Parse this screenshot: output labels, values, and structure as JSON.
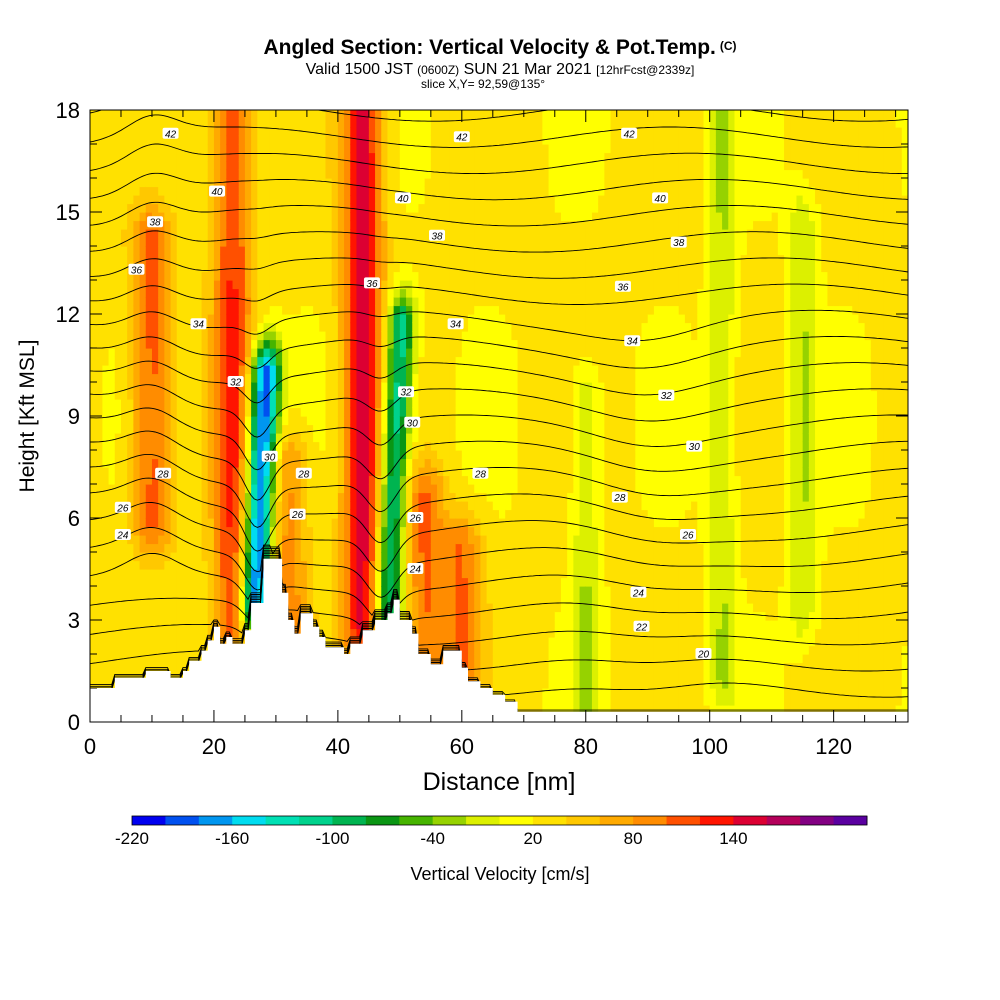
{
  "header": {
    "title": "Angled Section: Vertical Velocity & Pot.Temp.",
    "title_mark": "(C)",
    "valid_prefix": "Valid 1500 JST",
    "valid_utc": "(0600Z)",
    "valid_date": "SUN 21 Mar 2021",
    "forecast": "[12hrFcst@2339z]",
    "slice": "slice X,Y= 92,59@135°"
  },
  "chart_data": {
    "type": "heatmap",
    "xlabel": "Distance [nm]",
    "ylabel": "Height [Kft MSL]",
    "xlim": [
      0,
      132
    ],
    "ylim": [
      0,
      18
    ],
    "x_ticks": [
      0,
      20,
      40,
      60,
      80,
      100,
      120
    ],
    "y_ticks": [
      0,
      3,
      6,
      9,
      12,
      15,
      18
    ],
    "colorbar": {
      "label": "Vertical Velocity [cm/s]",
      "tick_labels": [
        "-220",
        "-160",
        "-100",
        "-40",
        "20",
        "80",
        "140"
      ],
      "tick_values": [
        -220,
        -160,
        -100,
        -40,
        20,
        80,
        140
      ],
      "min": -220,
      "step": 20,
      "colors": [
        "#0000f0",
        "#0050f0",
        "#0096f0",
        "#00dcf0",
        "#00e0b4",
        "#00d28c",
        "#00b450",
        "#0a9614",
        "#46b400",
        "#96d200",
        "#dcf000",
        "#ffff00",
        "#ffe100",
        "#ffc800",
        "#ffaa00",
        "#ff8c00",
        "#ff5000",
        "#ff1400",
        "#dc0032",
        "#b4005a",
        "#820082",
        "#5a00a0"
      ]
    },
    "contour_variable": "Potential temperature [C]",
    "contour_levels": [
      20,
      22,
      24,
      26,
      28,
      30,
      32,
      34,
      36,
      38,
      40,
      42
    ],
    "velocity_features": [
      {
        "x": 10,
        "z_range": [
          6.5,
          13.5
        ],
        "w": 110
      },
      {
        "x": 23,
        "z_range": [
          3.5,
          18
        ],
        "w": 120
      },
      {
        "x": 27.5,
        "z_range": [
          4.2,
          9.5
        ],
        "w": -200
      },
      {
        "x": 32,
        "z_range": [
          3,
          7
        ],
        "w": 90
      },
      {
        "x": 44,
        "z_range": [
          3.5,
          18
        ],
        "w": 150
      },
      {
        "x": 49,
        "z_range": [
          3,
          11
        ],
        "w": -120
      },
      {
        "x": 54,
        "z_range": [
          2.5,
          6
        ],
        "w": 100
      },
      {
        "x": 60,
        "z_range": [
          2,
          4.5
        ],
        "w": 100
      },
      {
        "x": 80,
        "z_range": [
          0,
          9
        ],
        "w": -20
      },
      {
        "x": 102,
        "z_range": [
          2,
          18
        ],
        "w": -20
      },
      {
        "x": 115,
        "z_range": [
          4,
          14
        ],
        "w": -20
      }
    ],
    "terrain_profile": {
      "x": [
        0,
        4,
        4,
        9,
        9,
        13,
        13,
        15,
        15,
        16,
        16,
        18,
        18,
        19,
        19,
        20,
        20,
        21,
        21,
        22,
        22,
        23,
        23,
        25,
        25,
        26,
        26,
        28,
        28,
        31,
        31,
        32,
        32,
        33,
        33,
        34,
        34,
        36,
        36,
        37,
        37,
        38,
        38,
        41,
        41,
        42,
        42,
        44,
        44,
        46,
        46,
        48,
        48,
        49,
        49,
        50,
        50,
        52,
        52,
        53,
        53,
        55,
        55,
        57,
        57,
        60,
        60,
        61,
        61,
        63,
        63,
        65,
        65,
        67,
        67,
        69,
        69,
        71,
        71,
        132
      ],
      "z": [
        1,
        1,
        1.3,
        1.3,
        1.5,
        1.5,
        1.3,
        1.3,
        1.5,
        1.5,
        1.8,
        1.8,
        2.1,
        2.1,
        2.4,
        2.4,
        2.8,
        2.8,
        2.3,
        2.3,
        2.5,
        2.5,
        2.3,
        2.3,
        2.7,
        2.7,
        3.5,
        3.5,
        4.8,
        4.8,
        3.8,
        3.8,
        3.0,
        3.0,
        2.6,
        2.6,
        3.2,
        3.2,
        2.8,
        2.8,
        2.5,
        2.5,
        2.2,
        2.2,
        2.0,
        2.0,
        2.3,
        2.3,
        2.7,
        2.7,
        3.0,
        3.0,
        3.2,
        3.2,
        3.6,
        3.6,
        3.0,
        3.0,
        2.6,
        2.6,
        2.0,
        2.0,
        1.7,
        1.7,
        2.1,
        2.1,
        1.6,
        1.6,
        1.2,
        1.2,
        1.0,
        1.0,
        0.8,
        0.8,
        0.6,
        0.6,
        0.3,
        0.3,
        0.3,
        0.3
      ]
    },
    "contour_labels": [
      {
        "x": 13,
        "z": 17.3,
        "text": "42"
      },
      {
        "x": 60,
        "z": 17.2,
        "text": "42"
      },
      {
        "x": 87,
        "z": 17.3,
        "text": "42"
      },
      {
        "x": 20.5,
        "z": 15.6,
        "text": "40"
      },
      {
        "x": 50.5,
        "z": 15.4,
        "text": "40"
      },
      {
        "x": 92,
        "z": 15.4,
        "text": "40"
      },
      {
        "x": 10.5,
        "z": 14.7,
        "text": "38"
      },
      {
        "x": 56,
        "z": 14.3,
        "text": "38"
      },
      {
        "x": 95,
        "z": 14.1,
        "text": "38"
      },
      {
        "x": 7.5,
        "z": 13.3,
        "text": "36"
      },
      {
        "x": 45.5,
        "z": 12.9,
        "text": "36"
      },
      {
        "x": 86,
        "z": 12.8,
        "text": "36"
      },
      {
        "x": 17.5,
        "z": 11.7,
        "text": "34"
      },
      {
        "x": 59,
        "z": 11.7,
        "text": "34"
      },
      {
        "x": 87.5,
        "z": 11.2,
        "text": "34"
      },
      {
        "x": 23.5,
        "z": 10.0,
        "text": "32"
      },
      {
        "x": 51,
        "z": 9.7,
        "text": "32"
      },
      {
        "x": 93,
        "z": 9.6,
        "text": "32"
      },
      {
        "x": 52,
        "z": 8.8,
        "text": "30"
      },
      {
        "x": 29,
        "z": 7.8,
        "text": "30"
      },
      {
        "x": 97.5,
        "z": 8.1,
        "text": "30"
      },
      {
        "x": 11.8,
        "z": 7.3,
        "text": "28"
      },
      {
        "x": 34.5,
        "z": 7.3,
        "text": "28"
      },
      {
        "x": 63,
        "z": 7.3,
        "text": "28"
      },
      {
        "x": 85.5,
        "z": 6.6,
        "text": "28"
      },
      {
        "x": 5.3,
        "z": 6.3,
        "text": "26"
      },
      {
        "x": 33.5,
        "z": 6.1,
        "text": "26"
      },
      {
        "x": 52.5,
        "z": 6.0,
        "text": "26"
      },
      {
        "x": 96.5,
        "z": 5.5,
        "text": "26"
      },
      {
        "x": 5.3,
        "z": 5.5,
        "text": "24"
      },
      {
        "x": 52.5,
        "z": 4.5,
        "text": "24"
      },
      {
        "x": 88.5,
        "z": 3.8,
        "text": "24"
      },
      {
        "x": 89,
        "z": 2.8,
        "text": "22"
      },
      {
        "x": 99,
        "z": 2.0,
        "text": "20"
      }
    ]
  }
}
